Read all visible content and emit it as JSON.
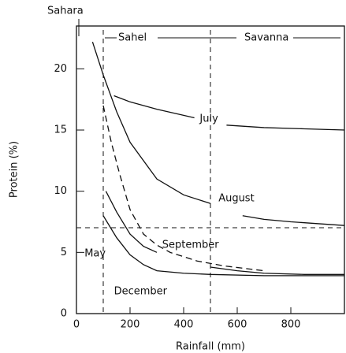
{
  "chart_data": {
    "type": "line",
    "x_label": "Rainfall (mm)",
    "y_label": "Protein (%)",
    "xlim": [
      0,
      1000
    ],
    "xticks": [
      0,
      200,
      400,
      600,
      800
    ],
    "ylim": [
      0,
      23.5
    ],
    "yticks": [
      0,
      5,
      10,
      15,
      20
    ],
    "annotations": [
      "Sahara",
      "Sahel",
      "Savanna"
    ],
    "series": [
      {
        "name": "July",
        "color": "#111",
        "dash": false,
        "x": [
          140,
          200,
          300,
          400,
          440,
          480,
          560,
          700,
          850,
          1000
        ],
        "values": [
          17.8,
          17.3,
          16.7,
          16.2,
          16.0,
          null,
          15.4,
          15.2,
          15.1,
          15.0
        ]
      },
      {
        "name": "August",
        "color": "#111",
        "dash": false,
        "x": [
          60,
          100,
          150,
          200,
          300,
          400,
          500,
          560,
          620,
          700,
          800,
          1000
        ],
        "values": [
          22.2,
          19.5,
          16.5,
          14.0,
          11.0,
          9.7,
          9.0,
          null,
          8.0,
          7.7,
          7.5,
          7.2
        ]
      },
      {
        "name": "September",
        "color": "#111",
        "dash": false,
        "x": [
          110,
          150,
          200,
          250,
          300,
          360,
          500,
          600,
          700,
          850,
          1000
        ],
        "values": [
          10.0,
          8.3,
          6.5,
          5.5,
          5.0,
          null,
          3.8,
          3.5,
          3.3,
          3.2,
          3.2
        ]
      },
      {
        "name": "December",
        "color": "#111",
        "dash": false,
        "x": [
          100,
          150,
          200,
          250,
          300,
          400,
          500,
          700,
          1000
        ],
        "values": [
          8.0,
          6.2,
          4.8,
          4.0,
          3.5,
          3.3,
          3.2,
          3.1,
          3.1
        ]
      },
      {
        "name": "May",
        "color": "#111",
        "dash": true,
        "x": [
          100,
          130,
          160,
          200,
          250,
          300,
          350,
          450,
          550,
          700
        ],
        "values": [
          17.0,
          14.0,
          11.5,
          8.5,
          6.5,
          5.6,
          5.0,
          4.3,
          3.9,
          3.5
        ]
      }
    ]
  }
}
